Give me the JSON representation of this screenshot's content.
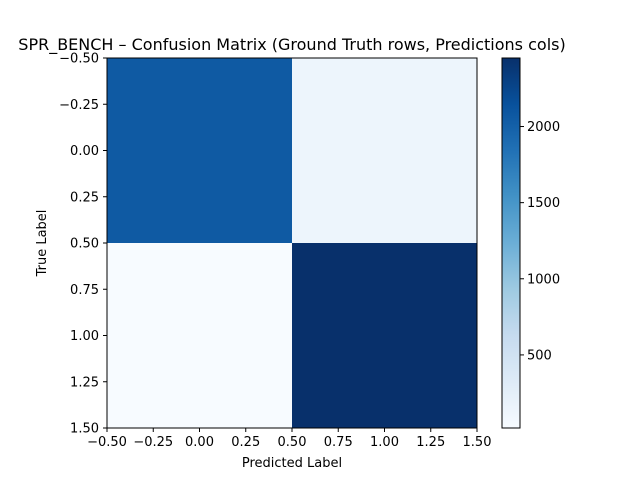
{
  "chart_data": {
    "type": "heatmap",
    "title": "SPR_BENCH – Confusion Matrix (Ground Truth rows, Predictions cols)",
    "xlabel": "Predicted Label",
    "ylabel": "True Label",
    "matrix": [
      [
        2060,
        140
      ],
      [
        20,
        2450
      ]
    ],
    "colormap": "Blues",
    "xlim": [
      -0.5,
      1.5
    ],
    "ylim": [
      1.5,
      -0.5
    ],
    "x_ticks": [
      "−0.50",
      "−0.25",
      "0.00",
      "0.25",
      "0.50",
      "0.75",
      "1.00",
      "1.25",
      "1.50"
    ],
    "y_ticks": [
      "−0.50",
      "−0.25",
      "0.00",
      "0.25",
      "0.50",
      "0.75",
      "1.00",
      "1.25",
      "1.50"
    ],
    "colorbar": {
      "range": [
        20,
        2450
      ],
      "ticks": [
        "500",
        "1000",
        "1500",
        "2000"
      ]
    },
    "colors": {
      "low": "#f7fbff",
      "high": "#08306b"
    }
  }
}
